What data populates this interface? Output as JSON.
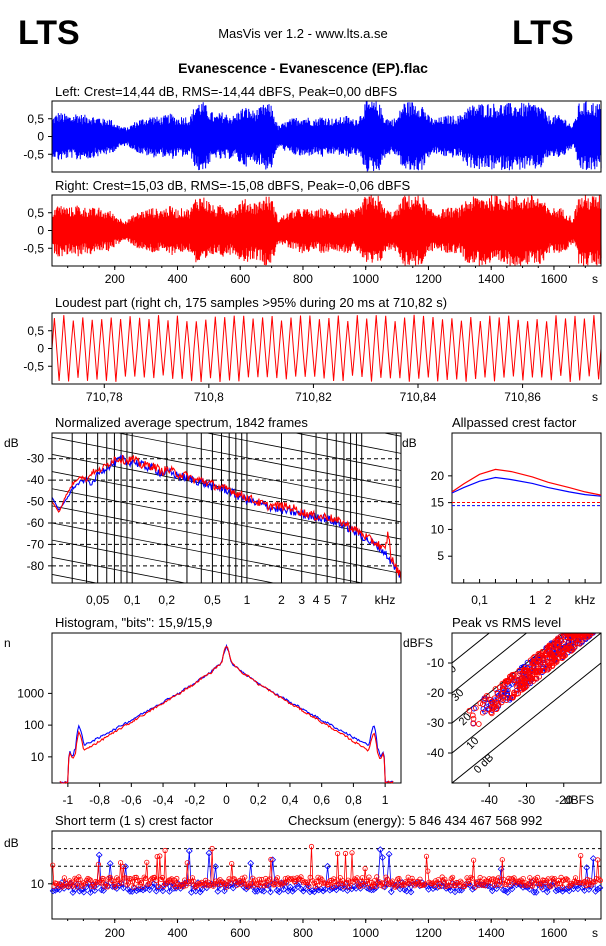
{
  "header": {
    "logo_left": "LTS",
    "logo_right": "LTS",
    "app_title": "MasVis ver 1.2 - www.lts.a.se",
    "file_title": "Evanescence - Evanescence (EP).flac"
  },
  "colors": {
    "left": "#0000ff",
    "right": "#ff0000",
    "axis": "#000000"
  },
  "chart_data": [
    {
      "type": "area",
      "id": "left",
      "title": "Left: Crest=14,44 dB, RMS=-14,44 dBFS, Peak=0,00 dBFS",
      "ylim": [
        -1,
        1
      ],
      "yticks": [
        "0.5",
        "0",
        "-0.5"
      ],
      "ytick_labels": [
        "0,5",
        "0",
        "-0,5"
      ],
      "xlim": [
        0,
        1750
      ],
      "envelope_x": [
        0,
        20,
        40,
        60,
        80,
        100,
        120,
        140,
        150,
        160,
        180,
        200,
        220,
        240,
        260,
        280,
        300,
        320,
        340,
        360,
        380,
        400,
        420,
        440,
        460,
        480,
        500,
        520,
        540,
        560,
        580,
        600,
        620,
        640,
        660,
        680,
        700,
        720,
        740,
        760,
        780,
        800,
        820,
        840,
        860,
        880,
        900,
        920,
        940,
        960,
        980,
        1000,
        1020,
        1040,
        1060,
        1080,
        1100,
        1120,
        1140,
        1160,
        1180,
        1200,
        1220,
        1240,
        1260,
        1280,
        1300,
        1320,
        1340,
        1360,
        1380,
        1400,
        1420,
        1440,
        1460,
        1480,
        1500,
        1520,
        1540,
        1560,
        1580,
        1600,
        1620,
        1640,
        1660,
        1680,
        1700,
        1720,
        1740
      ],
      "envelope": [
        0.55,
        0.7,
        0.65,
        0.6,
        0.7,
        0.6,
        0.65,
        0.55,
        0.6,
        0.5,
        0.55,
        0.4,
        0.3,
        0.25,
        0.4,
        0.5,
        0.55,
        0.6,
        0.55,
        0.6,
        0.65,
        0.55,
        0.6,
        0.55,
        1.0,
        1.0,
        0.8,
        0.6,
        0.7,
        0.65,
        0.6,
        0.8,
        0.85,
        0.75,
        0.8,
        0.95,
        0.9,
        0.3,
        0.4,
        0.5,
        0.55,
        0.6,
        0.55,
        0.5,
        0.6,
        0.55,
        0.5,
        0.55,
        0.6,
        0.5,
        0.6,
        1.0,
        1.0,
        1.0,
        0.6,
        0.5,
        0.55,
        1.0,
        1.0,
        1.0,
        0.95,
        0.6,
        0.5,
        0.55,
        0.6,
        0.6,
        0.6,
        0.85,
        0.9,
        0.95,
        0.95,
        0.95,
        0.95,
        0.95,
        0.95,
        0.95,
        0.95,
        0.95,
        0.95,
        0.9,
        0.6,
        0.6,
        0.6,
        0.5,
        0.3,
        0.95,
        1.0,
        1.0,
        0.95
      ]
    },
    {
      "type": "area",
      "id": "right",
      "title": "Right: Crest=15,03 dB, RMS=-15,08 dBFS, Peak=-0,06 dBFS",
      "ylim": [
        -1,
        1
      ],
      "yticks": [
        "0.5",
        "0",
        "-0.5"
      ],
      "ytick_labels": [
        "0,5",
        "0",
        "-0,5"
      ],
      "xlim": [
        0,
        1750
      ],
      "xticks": [
        "200",
        "400",
        "600",
        "800",
        "1000",
        "1200",
        "1400",
        "1600"
      ],
      "xunit": "s",
      "envelope_x": [
        0,
        20,
        40,
        60,
        80,
        100,
        120,
        140,
        150,
        160,
        180,
        200,
        220,
        240,
        260,
        280,
        300,
        320,
        340,
        360,
        380,
        400,
        420,
        440,
        460,
        480,
        500,
        520,
        540,
        560,
        580,
        600,
        620,
        640,
        660,
        680,
        700,
        720,
        740,
        760,
        780,
        800,
        820,
        840,
        860,
        880,
        900,
        920,
        940,
        960,
        980,
        1000,
        1020,
        1040,
        1060,
        1080,
        1100,
        1120,
        1140,
        1160,
        1180,
        1200,
        1220,
        1240,
        1260,
        1280,
        1300,
        1320,
        1340,
        1360,
        1380,
        1400,
        1420,
        1440,
        1460,
        1480,
        1500,
        1520,
        1540,
        1560,
        1580,
        1600,
        1620,
        1640,
        1660,
        1680,
        1700,
        1720,
        1740
      ],
      "envelope": [
        0.6,
        0.75,
        0.7,
        0.65,
        0.75,
        0.65,
        0.7,
        0.6,
        0.65,
        0.55,
        0.6,
        0.45,
        0.35,
        0.3,
        0.45,
        0.55,
        0.6,
        0.65,
        0.6,
        0.65,
        0.7,
        0.6,
        0.65,
        0.6,
        1.0,
        1.0,
        0.85,
        0.65,
        0.75,
        0.7,
        0.65,
        0.85,
        0.9,
        0.8,
        0.85,
        1.0,
        0.95,
        0.35,
        0.45,
        0.55,
        0.6,
        0.65,
        0.6,
        0.55,
        0.65,
        0.6,
        0.55,
        0.6,
        0.65,
        0.55,
        0.65,
        1.0,
        1.0,
        1.0,
        0.65,
        0.55,
        0.6,
        1.0,
        1.0,
        1.0,
        1.0,
        0.65,
        0.55,
        0.6,
        0.65,
        0.65,
        0.65,
        0.9,
        0.95,
        1.0,
        1.0,
        1.0,
        1.0,
        1.0,
        1.0,
        1.0,
        1.0,
        1.0,
        1.0,
        0.95,
        0.65,
        0.65,
        0.65,
        0.55,
        0.35,
        1.0,
        1.0,
        1.0,
        1.0
      ]
    },
    {
      "type": "line",
      "id": "loudest",
      "title": "Loudest part (right ch, 175 samples >95% during 20 ms at 710,82 s)",
      "ylim": [
        -1,
        1
      ],
      "yticks": [
        "0.5",
        "0",
        "-0.5"
      ],
      "ytick_labels": [
        "0,5",
        "0",
        "-0,5"
      ],
      "xlim": [
        710.77,
        710.875
      ],
      "xticks": [
        "710.78",
        "710.8",
        "710.82",
        "710.84",
        "710.86"
      ],
      "xtick_labels": [
        "710,78",
        "710,8",
        "710,82",
        "710,84",
        "710,86"
      ],
      "xunit": "s",
      "cycles": 58
    },
    {
      "type": "line",
      "id": "spectrum",
      "title": "Normalized average spectrum, 1842 frames",
      "ylabel": "dB",
      "ylim": [
        -88,
        -18
      ],
      "yticks": [
        -30,
        -40,
        -50,
        -60,
        -70,
        -80
      ],
      "xscale": "log",
      "xlim": [
        0.02,
        22
      ],
      "xticks": [
        0.05,
        0.1,
        0.2,
        0.5,
        1,
        2,
        3,
        4,
        5,
        7
      ],
      "xtick_labels": [
        "0,05",
        "0,1",
        "0,2",
        "0,5",
        "1",
        "2",
        "3",
        "4",
        "5",
        "7"
      ],
      "xunit": "kHz",
      "series": [
        {
          "name": "left",
          "x": [
            0.02,
            0.023,
            0.026,
            0.03,
            0.035,
            0.04,
            0.045,
            0.05,
            0.06,
            0.07,
            0.08,
            0.09,
            0.1,
            0.12,
            0.14,
            0.16,
            0.18,
            0.2,
            0.25,
            0.3,
            0.35,
            0.4,
            0.5,
            0.6,
            0.7,
            0.8,
            1.0,
            1.2,
            1.5,
            2.0,
            2.5,
            3.0,
            3.5,
            4.0,
            5.0,
            6.0,
            7.0,
            8.0,
            10.0,
            12.0,
            14.0,
            16.0,
            17.0,
            18.0,
            20.0,
            22.0
          ],
          "y": [
            -48,
            -54,
            -50,
            -44,
            -41,
            -40,
            -42,
            -37,
            -34,
            -32,
            -30,
            -32,
            -31,
            -33,
            -34,
            -35,
            -37,
            -36,
            -38,
            -39,
            -40,
            -41,
            -43,
            -44,
            -45,
            -47,
            -49,
            -51,
            -52,
            -54,
            -55,
            -56,
            -57,
            -57,
            -58,
            -60,
            -61,
            -63,
            -66,
            -69,
            -71,
            -74,
            -76,
            -78,
            -82,
            -85
          ]
        },
        {
          "name": "right",
          "x": [
            0.02,
            0.023,
            0.026,
            0.03,
            0.035,
            0.04,
            0.045,
            0.05,
            0.06,
            0.07,
            0.08,
            0.09,
            0.1,
            0.12,
            0.14,
            0.16,
            0.18,
            0.2,
            0.25,
            0.3,
            0.35,
            0.4,
            0.5,
            0.6,
            0.7,
            0.8,
            1.0,
            1.2,
            1.5,
            2.0,
            2.5,
            3.0,
            3.5,
            4.0,
            5.0,
            6.0,
            7.0,
            8.0,
            10.0,
            12.0,
            14.0,
            16.0,
            17.0,
            18.0,
            20.0,
            22.0
          ],
          "y": [
            -50,
            -55,
            -48,
            -42,
            -38,
            -40,
            -36,
            -36,
            -33,
            -30,
            -30,
            -31,
            -30,
            -33,
            -33,
            -34,
            -36,
            -35,
            -37,
            -38,
            -40,
            -40,
            -42,
            -44,
            -44,
            -46,
            -48,
            -50,
            -52,
            -52,
            -53,
            -55,
            -56,
            -57,
            -57,
            -59,
            -60,
            -62,
            -65,
            -68,
            -70,
            -73,
            -64,
            -76,
            -81,
            -85
          ]
        }
      ]
    },
    {
      "type": "line",
      "id": "allpass",
      "title": "Allpassed crest factor",
      "ylabel": "dB",
      "ylim": [
        0,
        28
      ],
      "yticks": [
        5,
        10,
        15,
        20
      ],
      "xscale": "log",
      "xlim": [
        0.03,
        20
      ],
      "xticks": [
        0.1,
        1,
        2
      ],
      "xtick_labels": [
        "0,1",
        "1",
        "2"
      ],
      "xunit": "kHz",
      "reference": {
        "left": 14.44,
        "right": 15.03
      },
      "series": [
        {
          "name": "left",
          "x": [
            0.03,
            0.05,
            0.1,
            0.2,
            0.4,
            1,
            2,
            5,
            10,
            20
          ],
          "y": [
            16.8,
            17.8,
            19.0,
            19.7,
            19.3,
            18.6,
            17.8,
            17.0,
            16.5,
            16.2
          ]
        },
        {
          "name": "right",
          "x": [
            0.03,
            0.05,
            0.1,
            0.2,
            0.4,
            1,
            2,
            5,
            10,
            20
          ],
          "y": [
            17.0,
            18.5,
            20.3,
            21.2,
            20.8,
            19.8,
            18.8,
            17.8,
            17.0,
            16.4
          ]
        }
      ]
    },
    {
      "type": "line",
      "id": "histogram",
      "title": "Histogram, \"bits\": 15,9/15,9",
      "ylabel": "n",
      "yscale": "log",
      "ylim": [
        1.5,
        80000
      ],
      "yticks": [
        10,
        100,
        1000
      ],
      "xlim": [
        -1.1,
        1.1
      ],
      "xticks": [
        "-1",
        "-0.8",
        "-0.6",
        "-0.4",
        "-0.2",
        "0",
        "0.2",
        "0.4",
        "0.6",
        "0.8",
        "1"
      ],
      "xtick_labels": [
        "-1",
        "-0,8",
        "-0,6",
        "-0,4",
        "-0,2",
        "0",
        "0,2",
        "0,4",
        "0,6",
        "0,8",
        "1"
      ],
      "series": [
        {
          "name": "left",
          "x": [
            -1.05,
            -1.0,
            -0.99,
            -0.97,
            -0.95,
            -0.93,
            -0.9,
            -0.8,
            -0.7,
            -0.6,
            -0.5,
            -0.4,
            -0.3,
            -0.2,
            -0.1,
            -0.03,
            0,
            0.03,
            0.1,
            0.2,
            0.3,
            0.4,
            0.5,
            0.6,
            0.7,
            0.8,
            0.9,
            0.93,
            0.95,
            0.97,
            0.99,
            1.0,
            1.05
          ],
          "y": [
            1.6,
            1.6,
            15,
            10,
            20,
            100,
            22,
            40,
            75,
            140,
            270,
            520,
            1000,
            2000,
            4500,
            9000,
            30000,
            9000,
            4500,
            2000,
            1000,
            520,
            270,
            140,
            75,
            40,
            22,
            100,
            20,
            10,
            15,
            1.6,
            1.6
          ]
        },
        {
          "name": "right",
          "x": [
            -1.05,
            -1.0,
            -0.99,
            -0.97,
            -0.95,
            -0.93,
            -0.9,
            -0.8,
            -0.7,
            -0.6,
            -0.5,
            -0.4,
            -0.3,
            -0.2,
            -0.1,
            -0.03,
            0,
            0.03,
            0.1,
            0.2,
            0.3,
            0.4,
            0.5,
            0.6,
            0.7,
            0.8,
            0.9,
            0.93,
            0.95,
            0.97,
            0.99,
            1.0,
            1.05
          ],
          "y": [
            1.6,
            1.6,
            14,
            8,
            14,
            60,
            15,
            30,
            60,
            120,
            240,
            470,
            950,
            1950,
            4400,
            9000,
            32000,
            9000,
            4400,
            1950,
            950,
            470,
            240,
            120,
            60,
            30,
            15,
            60,
            14,
            8,
            14,
            1.6,
            1.6
          ]
        }
      ]
    },
    {
      "type": "scatter",
      "id": "peakrms",
      "title": "Peak vs RMS level",
      "ylabel": "dBFS",
      "xlabel": "dBFS",
      "xlim": [
        -50,
        -10
      ],
      "ylim": [
        -50,
        0
      ],
      "xticks": [
        -40,
        -30,
        -20
      ],
      "yticks": [
        -10,
        -20,
        -30,
        -40
      ],
      "diagonals": [
        "0 dB",
        "10",
        "20",
        "30",
        "40"
      ],
      "series": [
        {
          "name": "left",
          "n": 230,
          "x_range": [
            -46,
            -12
          ],
          "offset": 16,
          "spread": 4
        },
        {
          "name": "right",
          "n": 380,
          "x_range": [
            -46,
            -12
          ],
          "offset": 16,
          "spread": 4
        }
      ]
    },
    {
      "type": "scatter",
      "id": "shortcrest",
      "title": "Short term (1 s) crest factor",
      "checksum": "Checksum (energy):  5 846 434 467 568 992",
      "ylabel": "dB",
      "ylim": [
        0,
        25
      ],
      "yticks": [
        10
      ],
      "dashed": [
        15,
        20
      ],
      "xlim": [
        0,
        1750
      ],
      "xticks": [
        "200",
        "400",
        "600",
        "800",
        "1000",
        "1200",
        "1400",
        "1600"
      ],
      "xunit": "s",
      "series": [
        {
          "name": "left",
          "baseline": 9,
          "n": 250
        },
        {
          "name": "right",
          "baseline": 10.5,
          "n": 420
        }
      ]
    }
  ]
}
